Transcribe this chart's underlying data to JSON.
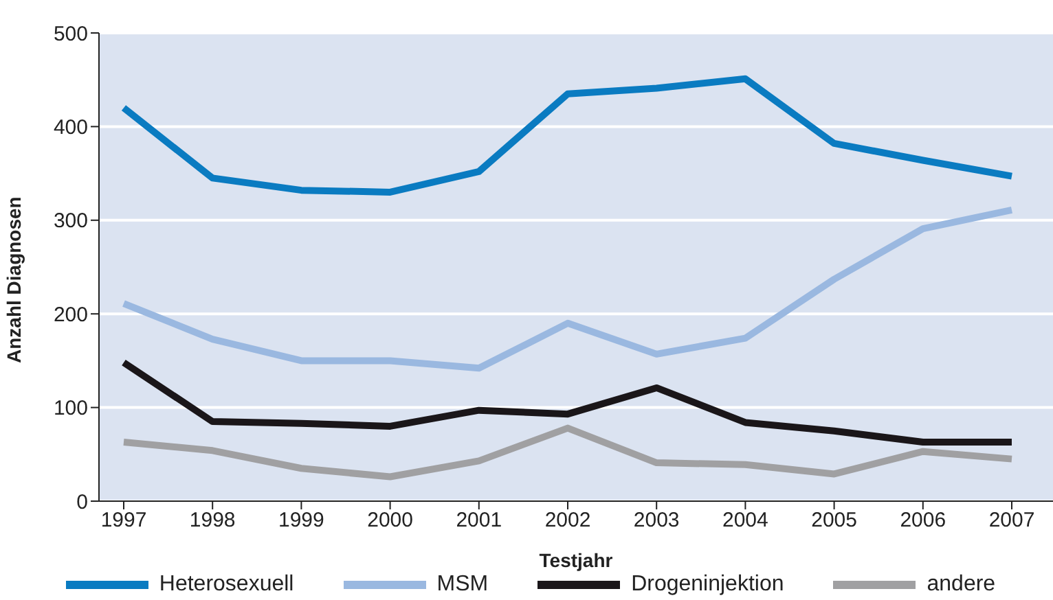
{
  "chart_data": {
    "type": "line",
    "xlabel": "Testjahr",
    "ylabel": "Anzahl Diagnosen",
    "categories": [
      "1997",
      "1998",
      "1999",
      "2000",
      "2001",
      "2002",
      "2003",
      "2004",
      "2005",
      "2006",
      "2007"
    ],
    "series": [
      {
        "name": "Heterosexuell",
        "color": "#0a7bc1",
        "values": [
          420,
          345,
          332,
          330,
          352,
          435,
          441,
          451,
          382,
          364,
          347
        ]
      },
      {
        "name": "MSM",
        "color": "#9ab8e0",
        "values": [
          211,
          173,
          150,
          150,
          142,
          190,
          157,
          174,
          237,
          291,
          311
        ]
      },
      {
        "name": "Drogeninjektion",
        "color": "#1a1619",
        "values": [
          148,
          85,
          83,
          80,
          97,
          93,
          121,
          84,
          75,
          63,
          63
        ]
      },
      {
        "name": "andere",
        "color": "#a0a0a2",
        "values": [
          63,
          54,
          35,
          26,
          43,
          78,
          41,
          39,
          29,
          53,
          45
        ]
      }
    ],
    "ylim": [
      0,
      500
    ],
    "yticks": [
      0,
      100,
      200,
      300,
      400,
      500
    ],
    "grid": "y",
    "legend": "bottom",
    "marker": "none",
    "line_style": "solid"
  }
}
